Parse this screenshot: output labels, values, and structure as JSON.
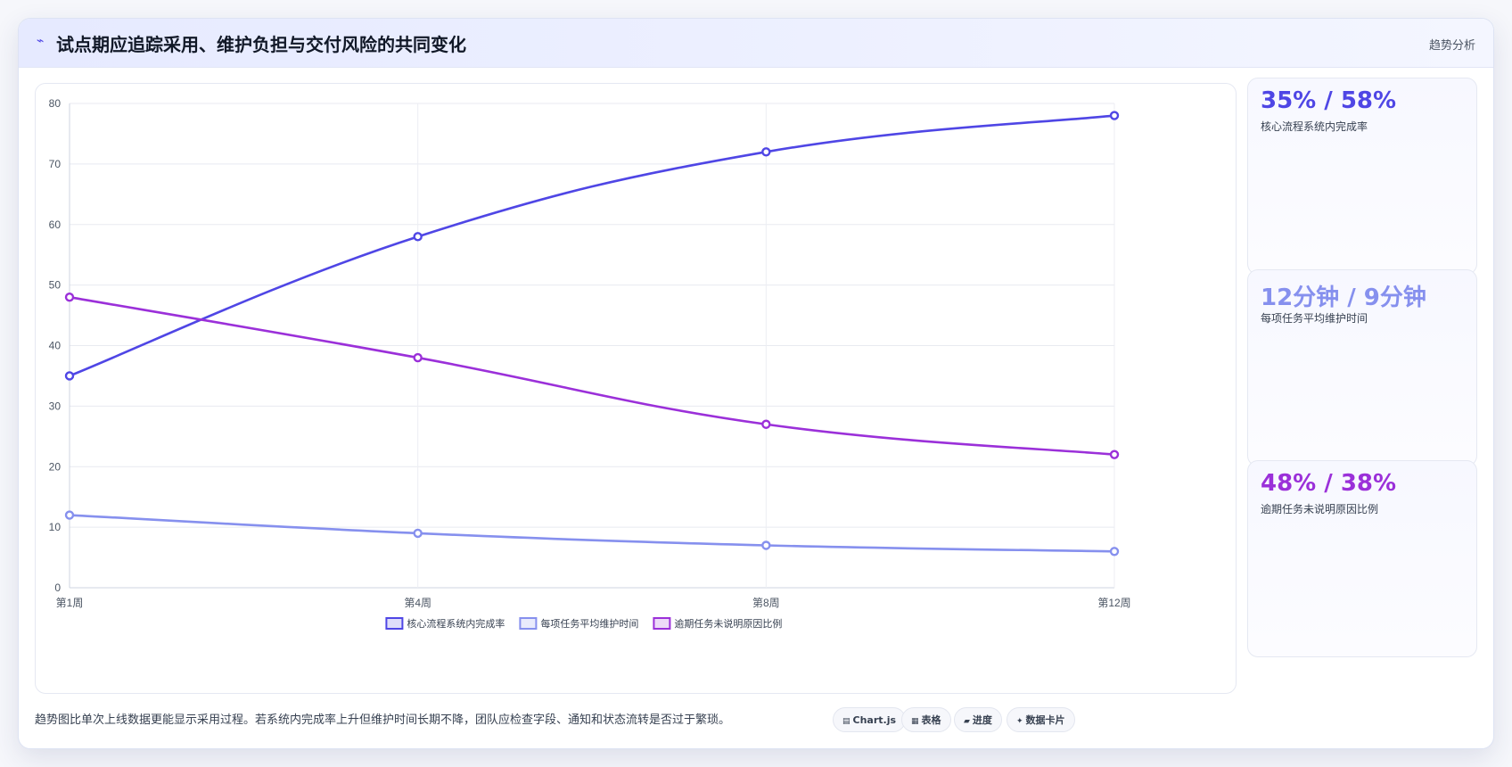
{
  "header": {
    "icon": "trend-icon",
    "title": "试点期应追踪采用、维护负担与交付风险的共同变化",
    "tag": "趋势分析"
  },
  "kpis": [
    {
      "value": "35% / 58%",
      "label": "核心流程系统内完成率",
      "color": "#4f46e5"
    },
    {
      "value": "12分钟 / 9分钟",
      "label": "每项任务平均维护时间",
      "color": "#8690ee"
    },
    {
      "value": "48% / 38%",
      "label": "逾期任务未说明原因比例",
      "color": "#9b30d9"
    }
  ],
  "note": "趋势图比单次上线数据更能显示采用过程。若系统内完成率上升但维护时间长期不降，团队应检查字段、通知和状态流转是否过于繁琐。",
  "chips": [
    {
      "icon": "chart-icon",
      "label": "Chart.js"
    },
    {
      "icon": "table-icon",
      "label": "表格"
    },
    {
      "icon": "progress-icon",
      "label": "进度"
    },
    {
      "icon": "card-icon",
      "label": "数据卡片"
    }
  ],
  "chart_data": {
    "type": "line",
    "categories": [
      "第1周",
      "第4周",
      "第8周",
      "第12周"
    ],
    "ylim": [
      0,
      80
    ],
    "yticks": [
      0,
      10,
      20,
      30,
      40,
      50,
      60,
      70,
      80
    ],
    "grid": true,
    "legend_position": "bottom",
    "series": [
      {
        "name": "核心流程系统内完成率",
        "values": [
          35,
          58,
          72,
          78
        ],
        "color": "#4f46e5"
      },
      {
        "name": "每项任务平均维护时间",
        "values": [
          12,
          9,
          7,
          6
        ],
        "color": "#8690ee"
      },
      {
        "name": "逾期任务未说明原因比例",
        "values": [
          48,
          38,
          27,
          22
        ],
        "color": "#9b30d9"
      }
    ]
  }
}
